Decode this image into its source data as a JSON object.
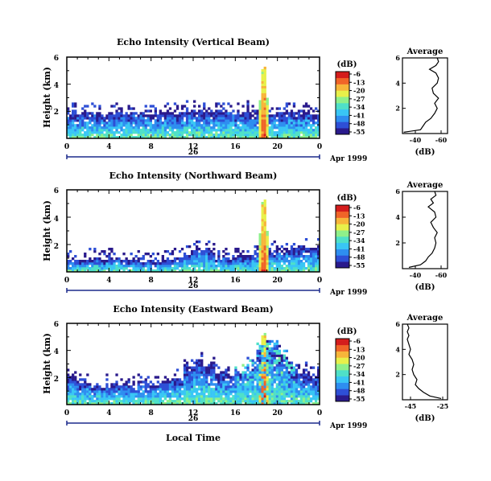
{
  "figure": {
    "shared_xlabel": "Local Time",
    "date_label": "Apr 1999",
    "colorbar_unit": "(dB)",
    "colorbar_ticks": [
      "-6",
      "-13",
      "-20",
      "-27",
      "-34",
      "-41",
      "-48",
      "-55"
    ],
    "colormap": [
      "#2a1a8c",
      "#2e4fd6",
      "#2e8ef0",
      "#39c6f5",
      "#4fe0c8",
      "#8ff08a",
      "#e8f04a",
      "#f7b53a",
      "#f06428",
      "#d41c1c"
    ],
    "xticks": [
      "0",
      "4",
      "8",
      "12",
      "16",
      "20",
      "0"
    ],
    "day_label": "26",
    "height_label": "Height (km)",
    "height_ticks": [
      "6",
      "4",
      "2"
    ]
  },
  "chart_data": [
    {
      "type": "heatmap",
      "title": "Echo Intensity (Vertical Beam)",
      "xlabel": "",
      "ylabel": "Height (km)",
      "xlim": [
        0,
        24
      ],
      "ylim": [
        0,
        6
      ],
      "zlim": [
        -55,
        -6
      ],
      "zunit": "dB",
      "layer_top_km": [
        1.9,
        1.8,
        1.9,
        1.8,
        1.9,
        1.8,
        1.9,
        1.9,
        1.8,
        1.9,
        1.9,
        2.0,
        2.0,
        2.1,
        2.0,
        2.0,
        1.9,
        1.9,
        1.8,
        1.8,
        1.9,
        1.9,
        2.0,
        1.9
      ],
      "average_profile": {
        "title": "Average",
        "xlabel": "(dB)",
        "xticks": [
          "-40",
          "-60"
        ],
        "xlim": [
          -30,
          -65
        ],
        "yticks": [
          "6",
          "4",
          "2"
        ],
        "ylim": [
          0,
          6
        ],
        "dB": [
          -31,
          -44,
          -46,
          -48,
          -52,
          -55,
          -57,
          -55,
          -58,
          -54,
          -53,
          -57,
          -58,
          -56,
          -51,
          -56,
          -58,
          -57
        ],
        "height_km": [
          0.1,
          0.3,
          0.6,
          0.9,
          1.2,
          1.6,
          2.0,
          2.4,
          2.8,
          3.2,
          3.6,
          4.0,
          4.4,
          4.8,
          5.1,
          5.4,
          5.7,
          6.0
        ]
      }
    },
    {
      "type": "heatmap",
      "title": "Echo Intensity (Northward Beam)",
      "xlabel": "",
      "ylabel": "Height (km)",
      "xlim": [
        0,
        24
      ],
      "ylim": [
        0,
        6
      ],
      "zlim": [
        -55,
        -6
      ],
      "zunit": "dB",
      "layer_top_km": [
        1.0,
        0.9,
        0.9,
        1.0,
        1.0,
        0.9,
        0.9,
        0.8,
        0.8,
        0.9,
        1.0,
        1.3,
        1.7,
        1.6,
        1.1,
        1.0,
        1.1,
        1.2,
        1.5,
        1.6,
        1.6,
        1.8,
        1.9,
        1.7
      ],
      "average_profile": {
        "title": "Average",
        "xlabel": "(dB)",
        "xticks": [
          "-40",
          "-60"
        ],
        "xlim": [
          -30,
          -65
        ],
        "yticks": [
          "6",
          "4",
          "2"
        ],
        "ylim": [
          0,
          6
        ],
        "dB": [
          -35,
          -44,
          -48,
          -50,
          -53,
          -55,
          -56,
          -55,
          -57,
          -54,
          -52,
          -56,
          -55,
          -50,
          -54,
          -52,
          -56,
          -55
        ],
        "height_km": [
          0.1,
          0.3,
          0.6,
          0.9,
          1.2,
          1.6,
          2.0,
          2.4,
          2.8,
          3.2,
          3.6,
          4.0,
          4.4,
          4.8,
          5.1,
          5.4,
          5.7,
          6.0
        ]
      }
    },
    {
      "type": "heatmap",
      "title": "Echo Intensity (Eastward Beam)",
      "xlabel": "Local Time",
      "ylabel": "Height (km)",
      "xlim": [
        0,
        24
      ],
      "ylim": [
        0,
        6
      ],
      "zlim": [
        -55,
        -6
      ],
      "zunit": "dB",
      "layer_top_km": [
        2.0,
        1.6,
        1.5,
        1.4,
        1.4,
        1.5,
        1.6,
        1.6,
        1.6,
        1.7,
        1.9,
        2.6,
        3.5,
        3.0,
        2.4,
        2.2,
        2.4,
        2.7,
        4.0,
        4.2,
        3.5,
        2.6,
        2.4,
        2.2
      ],
      "average_profile": {
        "title": "Average",
        "xlabel": "(dB)",
        "xticks": [
          "-45",
          "-25"
        ],
        "xlim": [
          -50,
          -22
        ],
        "yticks": [
          "6",
          "4",
          "2"
        ],
        "ylim": [
          0,
          6
        ],
        "dB": [
          -26,
          -33,
          -37,
          -40,
          -42,
          -41,
          -43,
          -44,
          -43,
          -44,
          -46,
          -45,
          -46,
          -47,
          -46,
          -47,
          -46,
          -47
        ],
        "height_km": [
          0.1,
          0.3,
          0.6,
          0.9,
          1.2,
          1.6,
          2.0,
          2.4,
          2.8,
          3.2,
          3.6,
          4.0,
          4.4,
          4.8,
          5.1,
          5.4,
          5.7,
          6.0
        ]
      }
    }
  ]
}
